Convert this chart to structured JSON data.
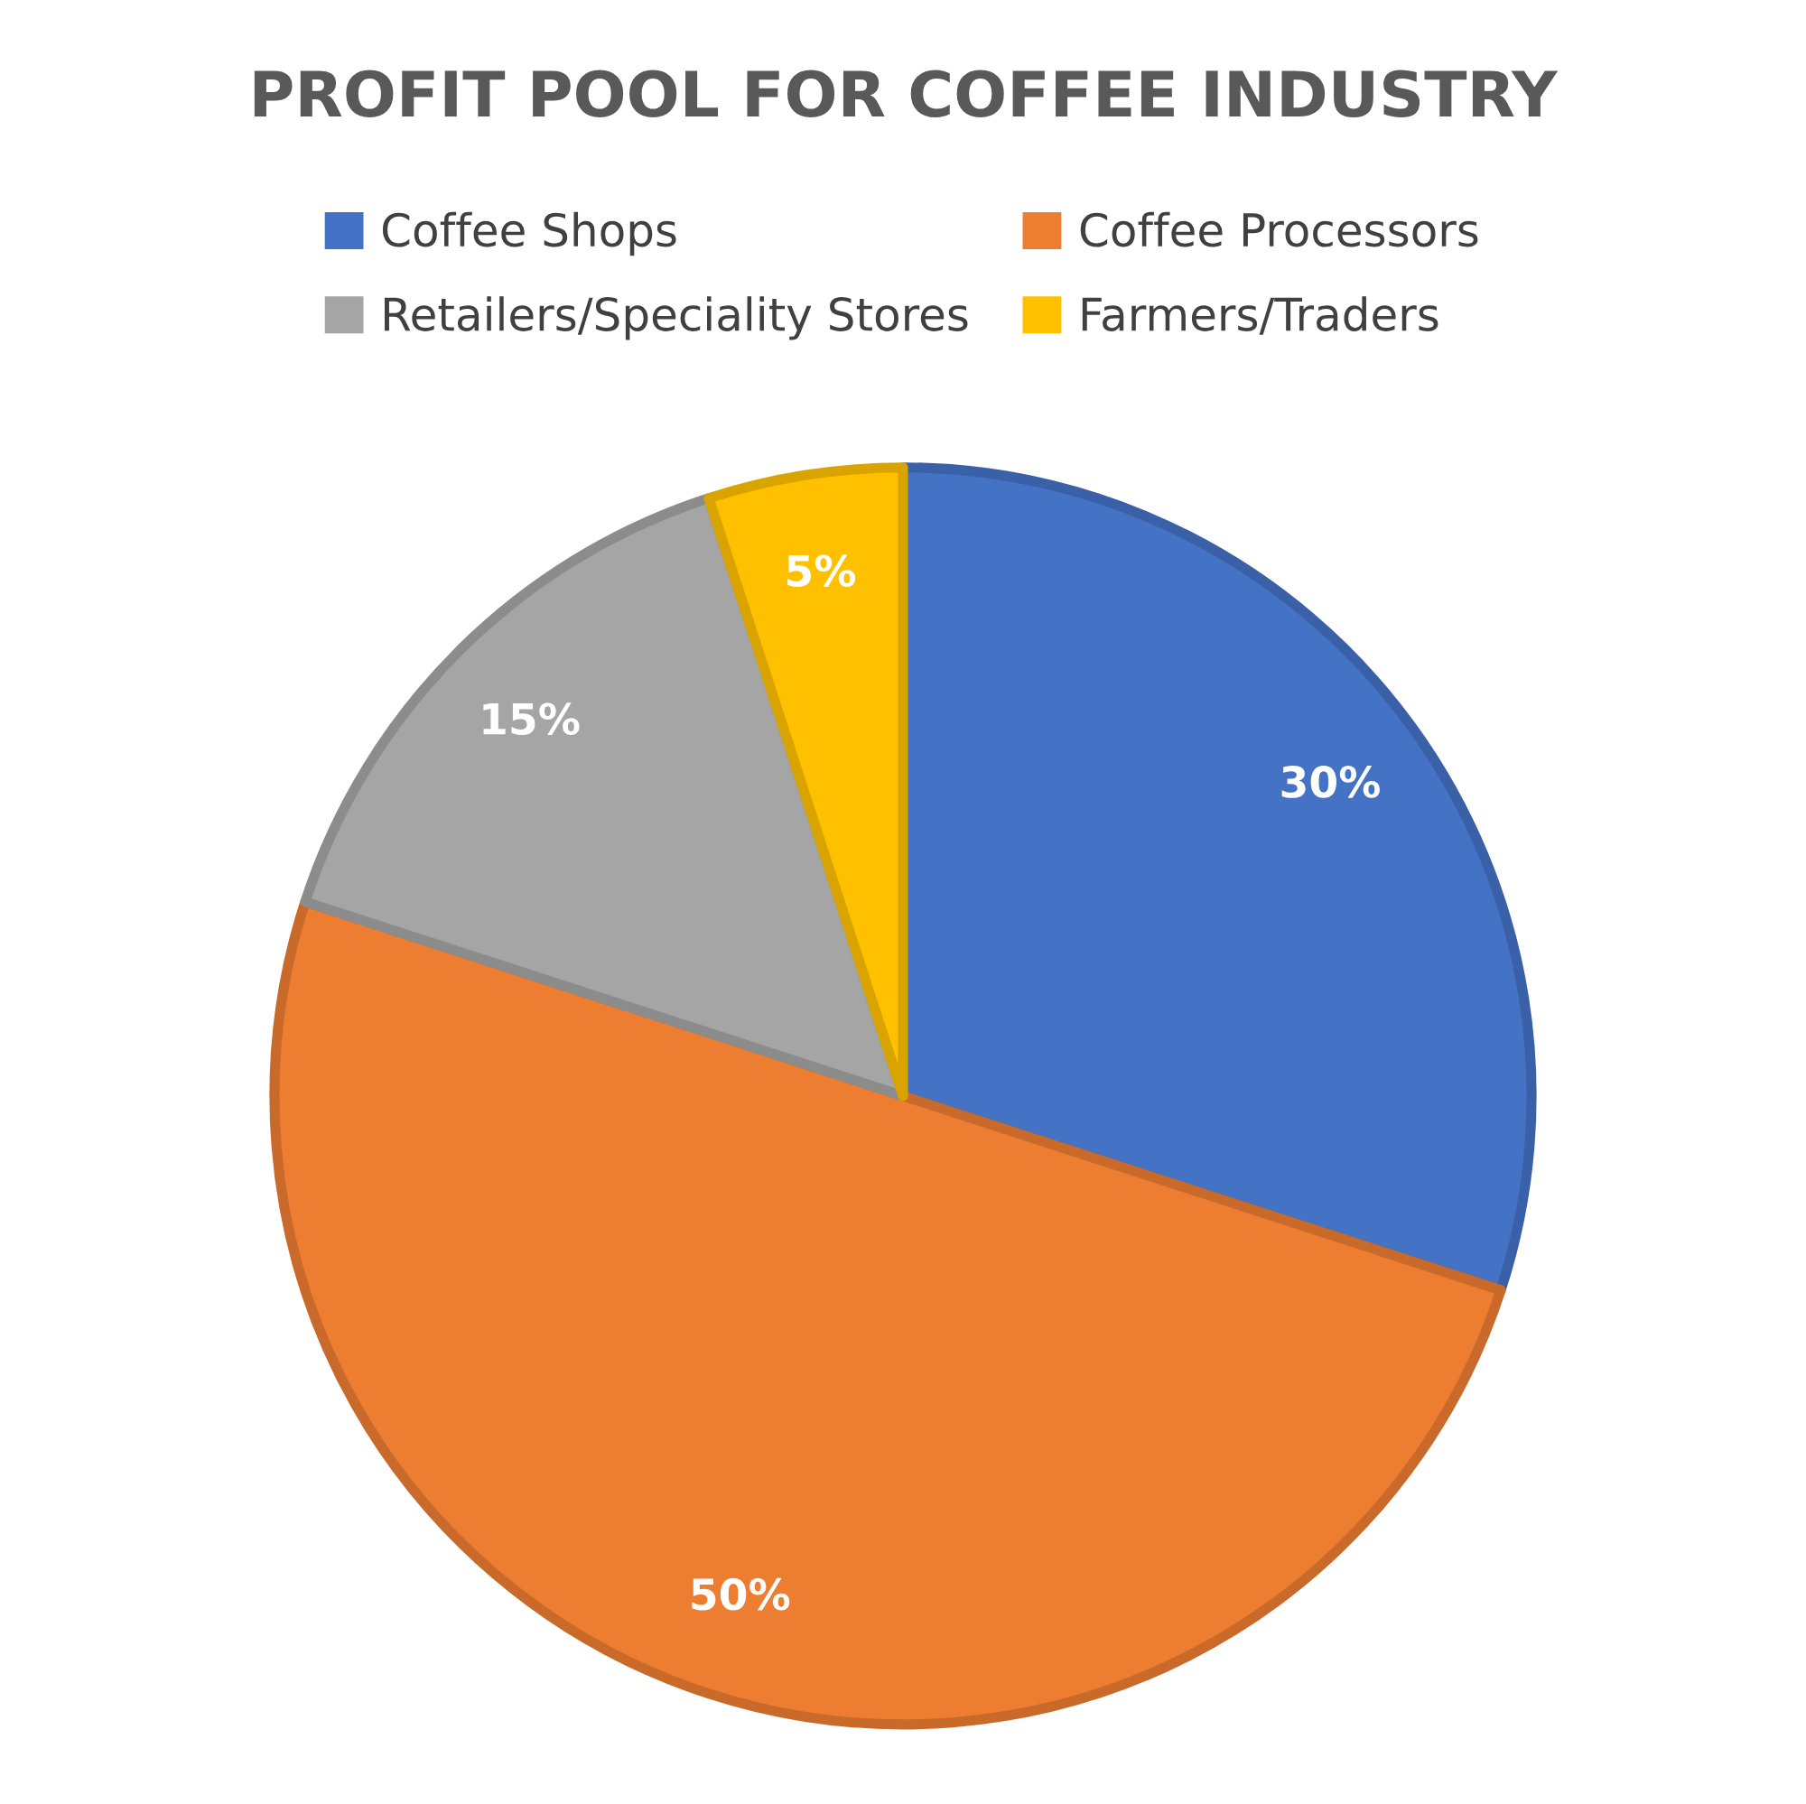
{
  "chart_data": {
    "type": "pie",
    "title": "PROFIT POOL FOR COFFEE INDUSTRY",
    "categories": [
      "Coffee Shops",
      "Coffee Processors",
      "Retailers/Speciality Stores",
      "Farmers/Traders"
    ],
    "values": [
      30,
      50,
      15,
      5
    ],
    "colors": [
      "#4472c4",
      "#ed7d31",
      "#a5a5a5",
      "#ffc000"
    ],
    "value_labels": [
      "30%",
      "50%",
      "15%",
      "5%"
    ],
    "legend": "top"
  }
}
